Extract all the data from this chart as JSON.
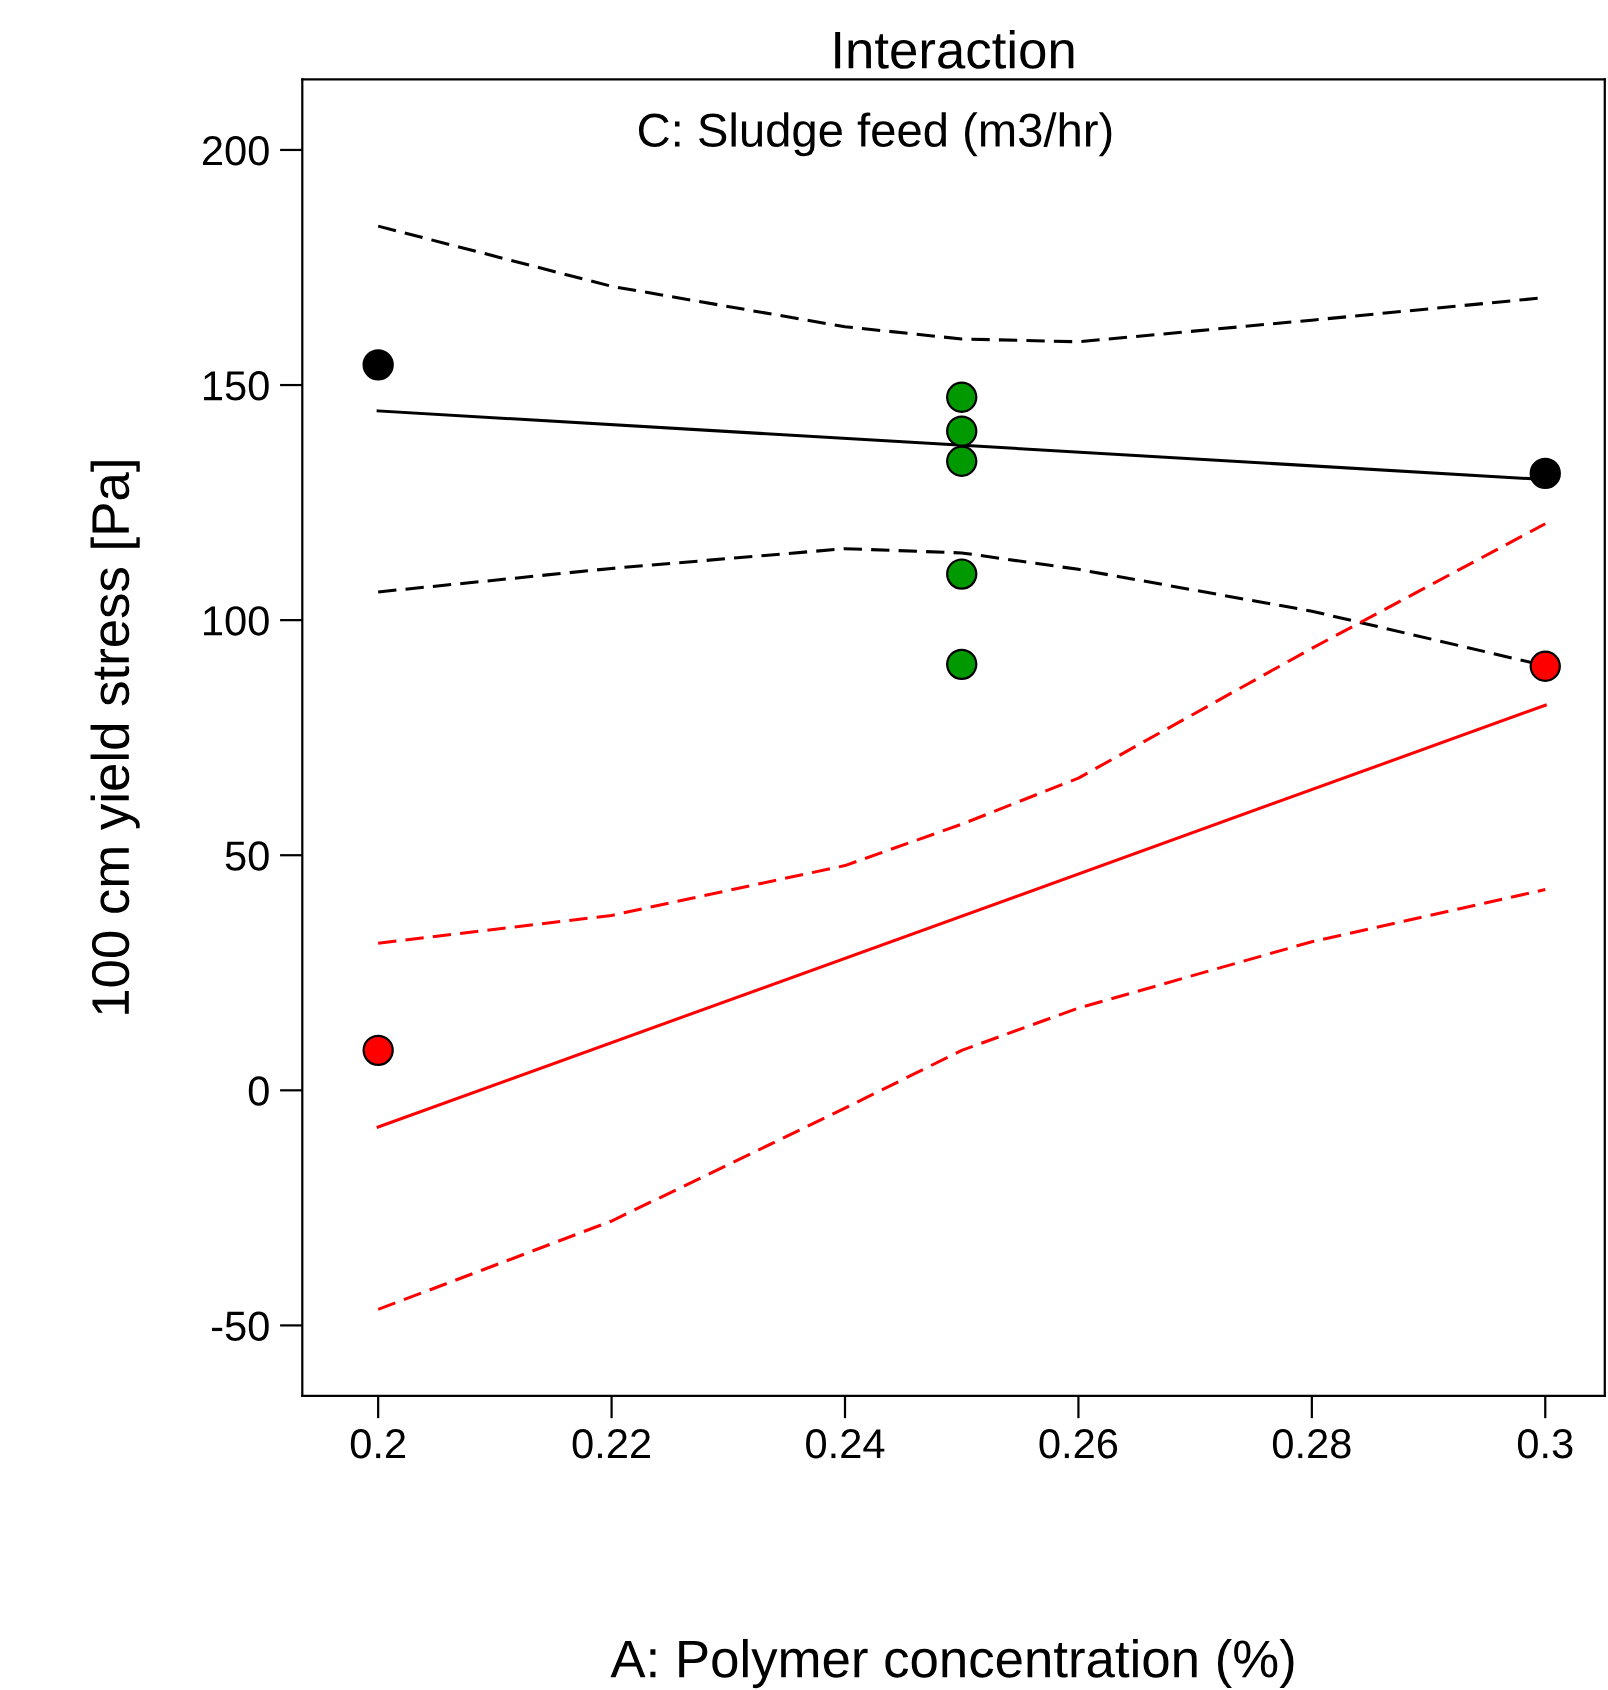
{
  "chart_data": {
    "type": "scatter",
    "title": "Interaction",
    "xlabel": "A: Polymer concentration (%)",
    "ylabel": "100 cm yield stress [Pa]",
    "annotations": [
      "C: Sludge feed (m3/hr)"
    ],
    "xlim": [
      0.1935,
      0.3051
    ],
    "xticks": [
      {
        "value": 0.2,
        "label": "0.2"
      },
      {
        "value": 0.22,
        "label": "0.22"
      },
      {
        "value": 0.24,
        "label": "0.24"
      },
      {
        "value": 0.26,
        "label": "0.26"
      },
      {
        "value": 0.28,
        "label": "0.28"
      },
      {
        "value": 0.3,
        "label": "0.3"
      }
    ],
    "ylim": [
      -65,
      215
    ],
    "yticks": [
      -50,
      0,
      50,
      100,
      150,
      200
    ],
    "grid": false,
    "legend": false,
    "marker": "circle",
    "series": [
      {
        "type": "line",
        "marker": "none",
        "color": "#000000",
        "line_style": "solid",
        "x": [
          0.2,
          0.3
        ],
        "values": [
          144.5,
          129.9
        ]
      },
      {
        "type": "line",
        "marker": "none",
        "color": "#000000",
        "line_style": "dashed",
        "x": [
          0.2,
          0.22,
          0.24,
          0.25,
          0.26,
          0.28,
          0.3
        ],
        "values": [
          183.8,
          171,
          162.4,
          159.8,
          159.2,
          163.8,
          168.6
        ]
      },
      {
        "type": "line",
        "marker": "none",
        "color": "#000000",
        "line_style": "dashed",
        "x": [
          0.2,
          0.22,
          0.24,
          0.25,
          0.26,
          0.28,
          0.3
        ],
        "values": [
          106,
          111,
          115.2,
          114.3,
          110.8,
          101.9,
          90.3
        ]
      },
      {
        "type": "line",
        "marker": "none",
        "color": "#ff0000",
        "line_style": "solid",
        "x": [
          0.2,
          0.3
        ],
        "values": [
          -7.8,
          81.9
        ]
      },
      {
        "type": "line",
        "marker": "none",
        "color": "#ff0000",
        "line_style": "dashed",
        "x": [
          0.2,
          0.22,
          0.24,
          0.25,
          0.26,
          0.28,
          0.3
        ],
        "values": [
          31.3,
          37.2,
          47.8,
          56.6,
          66.4,
          94,
          120.5
        ]
      },
      {
        "type": "line",
        "marker": "none",
        "color": "#ff0000",
        "line_style": "dashed",
        "x": [
          0.2,
          0.22,
          0.24,
          0.25,
          0.26,
          0.28,
          0.3
        ],
        "values": [
          -46.6,
          -27.8,
          -3.8,
          8.5,
          17.5,
          31.6,
          42.7
        ]
      },
      {
        "color": "#000000",
        "x": [
          0.2,
          0.3
        ],
        "values": [
          154.3,
          131.2
        ]
      },
      {
        "color": "#009900",
        "x": [
          0.25,
          0.25,
          0.25,
          0.25,
          0.25
        ],
        "values": [
          147.4,
          140.2,
          133.8,
          109.8,
          90.6
        ]
      },
      {
        "color": "#ff0000",
        "x": [
          0.2,
          0.3
        ],
        "values": [
          8.5,
          90.2
        ]
      }
    ]
  }
}
